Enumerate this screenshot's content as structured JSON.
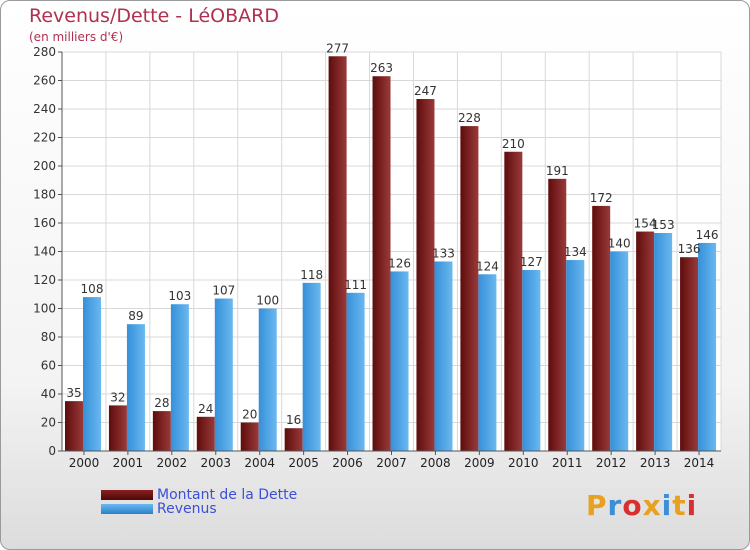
{
  "title": "Revenus/Dette - LéOBARD",
  "subtitle": "(en milliers d'€)",
  "logo": {
    "text": "Proxiti",
    "colors": [
      "#e8a020",
      "#3b8fd8",
      "#d83030",
      "#e8a020",
      "#3b8fd8",
      "#e8a020",
      "#d83030"
    ]
  },
  "legend": [
    {
      "label": "Montant de la Dette",
      "color": "#6b1010"
    },
    {
      "label": "Revenus",
      "color": "#3a9ae0"
    }
  ],
  "chart_data": {
    "type": "bar",
    "title": "Revenus/Dette - LéOBARD",
    "ylabel": "(en milliers d'€)",
    "xlabel": "",
    "ylim": [
      0,
      280
    ],
    "yticks": [
      0,
      20,
      40,
      60,
      80,
      100,
      120,
      140,
      160,
      180,
      200,
      220,
      240,
      260,
      280
    ],
    "grid": true,
    "legend_position": "bottom-left",
    "categories": [
      "2000",
      "2001",
      "2002",
      "2003",
      "2004",
      "2005",
      "2006",
      "2007",
      "2008",
      "2009",
      "2010",
      "2011",
      "2012",
      "2013",
      "2014"
    ],
    "series": [
      {
        "name": "Montant de la Dette",
        "color": "#8b2a2a",
        "values": [
          35,
          32,
          28,
          24,
          20,
          16,
          277,
          263,
          247,
          228,
          210,
          191,
          172,
          154,
          136
        ]
      },
      {
        "name": "Revenus",
        "color": "#3a9ae0",
        "values": [
          108,
          89,
          103,
          107,
          100,
          118,
          111,
          126,
          133,
          124,
          127,
          134,
          140,
          153,
          146
        ]
      }
    ]
  }
}
